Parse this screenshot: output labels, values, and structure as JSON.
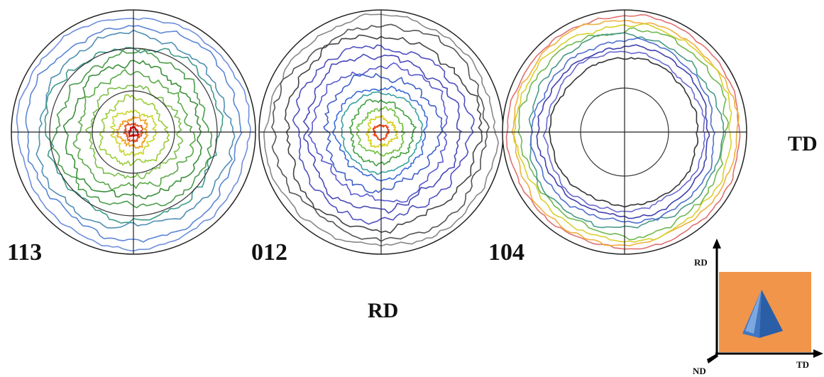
{
  "pole_figures": [
    {
      "label": "113"
    },
    {
      "label": "012"
    },
    {
      "label": "104"
    }
  ],
  "axis_labels": {
    "side": "TD",
    "bottom": "RD"
  },
  "inset": {
    "vertical_axis": "RD",
    "horizontal_axis": "TD",
    "origin_axis": "ND"
  }
}
